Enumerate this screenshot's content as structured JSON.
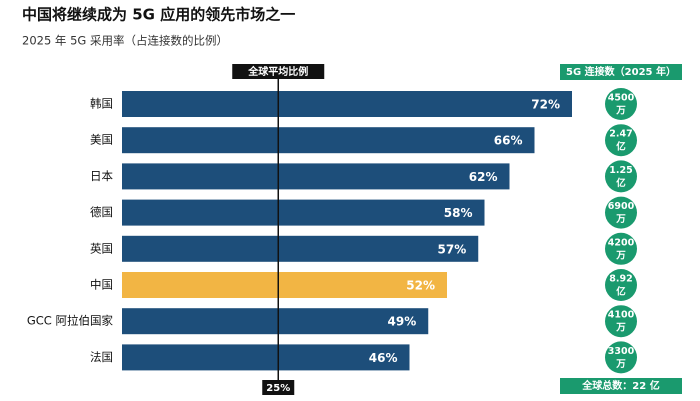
{
  "chart_data": {
    "type": "bar",
    "orientation": "horizontal",
    "title": "中国将继续成为 5G 应用的领先市场之一",
    "subtitle": "2025 年 5G 采用率（占连接数的比例）",
    "categories": [
      "韩国",
      "美国",
      "日本",
      "德国",
      "英国",
      "中国",
      "GCC 阿拉伯国家",
      "法国"
    ],
    "values": [
      72,
      66,
      62,
      58,
      57,
      52,
      49,
      46
    ],
    "value_labels": [
      "72%",
      "66%",
      "62%",
      "58%",
      "57%",
      "52%",
      "49%",
      "46%"
    ],
    "colors": [
      "#1d4e7a",
      "#1d4e7a",
      "#1d4e7a",
      "#1d4e7a",
      "#1d4e7a",
      "#f2b544",
      "#1d4e7a",
      "#1d4e7a"
    ],
    "reference_line": {
      "label": "全球平均比例",
      "value": 25,
      "value_label": "25%",
      "color": "#111111"
    },
    "side_column": {
      "header": "5G 连接数（2025 年）",
      "color": "#1a9a6e",
      "labels": [
        [
          "4500",
          "万"
        ],
        [
          "2.47",
          "亿"
        ],
        [
          "1.25",
          "亿"
        ],
        [
          "6900",
          "万"
        ],
        [
          "4200",
          "万"
        ],
        [
          "8.92",
          "亿"
        ],
        [
          "4100",
          "万"
        ],
        [
          "3300",
          "万"
        ]
      ],
      "footer": "全球总数：22 亿"
    }
  }
}
